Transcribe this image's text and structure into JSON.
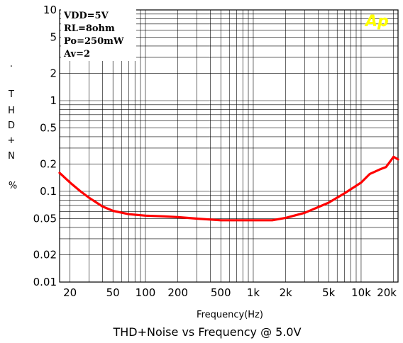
{
  "chart_data": {
    "type": "line",
    "title": "THD+Noise vs Frequency @ 5.0V",
    "xlabel": "Frequency(Hz)",
    "ylabel": "THD+N %",
    "ylabel_letters": [
      "T",
      "H",
      "D",
      "+",
      "N",
      "%"
    ],
    "ylabel_dot": ".",
    "x_scale": "log",
    "y_scale": "log",
    "xlim": [
      16,
      22000
    ],
    "ylim": [
      0.01,
      10
    ],
    "grid": true,
    "x_ticks": [
      {
        "value": 20,
        "label": "20"
      },
      {
        "value": 50,
        "label": "50"
      },
      {
        "value": 100,
        "label": "100"
      },
      {
        "value": 200,
        "label": "200"
      },
      {
        "value": 500,
        "label": "500"
      },
      {
        "value": 1000,
        "label": "1k"
      },
      {
        "value": 2000,
        "label": "2k"
      },
      {
        "value": 5000,
        "label": "5k"
      },
      {
        "value": 10000,
        "label": "10k"
      },
      {
        "value": 20000,
        "label": "20k"
      }
    ],
    "y_ticks": [
      {
        "value": 10,
        "label": "10"
      },
      {
        "value": 5,
        "label": "5"
      },
      {
        "value": 2,
        "label": "2"
      },
      {
        "value": 1,
        "label": "1"
      },
      {
        "value": 0.5,
        "label": "0.5"
      },
      {
        "value": 0.2,
        "label": "0.2"
      },
      {
        "value": 0.1,
        "label": "0.1"
      },
      {
        "value": 0.05,
        "label": "0.05"
      },
      {
        "value": 0.02,
        "label": "0.02"
      },
      {
        "value": 0.01,
        "label": "0.01"
      }
    ],
    "annotations": [
      "VDD=5V",
      "RL=8ohm",
      "Po=250mW",
      "Av=2"
    ],
    "logo": "Ap",
    "series": [
      {
        "color": "#ff0000",
        "x": [
          16,
          20,
          25,
          30,
          40,
          50,
          70,
          100,
          150,
          200,
          300,
          500,
          700,
          1000,
          1500,
          2000,
          3000,
          5000,
          7000,
          10000,
          12000,
          15000,
          17000,
          20000,
          22000
        ],
        "y": [
          0.16,
          0.125,
          0.1,
          0.085,
          0.068,
          0.061,
          0.056,
          0.054,
          0.053,
          0.052,
          0.05,
          0.048,
          0.048,
          0.048,
          0.048,
          0.051,
          0.058,
          0.075,
          0.095,
          0.125,
          0.155,
          0.175,
          0.185,
          0.24,
          0.225
        ]
      }
    ]
  }
}
